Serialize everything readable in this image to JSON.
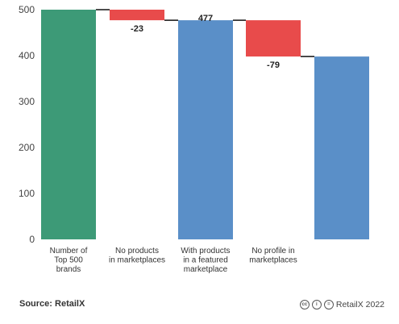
{
  "chart_data": {
    "type": "bar",
    "subtype": "waterfall",
    "categories": [
      [
        "Number of",
        "Top 500",
        "brands"
      ],
      [
        "No products",
        "in marketplaces"
      ],
      [
        "With products",
        "in a featured",
        "marketplace"
      ],
      [
        "No profile in",
        "marketplaces"
      ],
      []
    ],
    "steps": [
      {
        "kind": "total",
        "value": 500,
        "color": "#3d9a77",
        "label": ""
      },
      {
        "kind": "delta",
        "value": -23,
        "color": "#e84b4b",
        "label": "-23"
      },
      {
        "kind": "total",
        "value": 477,
        "color": "#5a8fc8",
        "label": "477"
      },
      {
        "kind": "delta",
        "value": -79,
        "color": "#e84b4b",
        "label": "-79"
      },
      {
        "kind": "total",
        "value": 398,
        "color": "#5a8fc8",
        "label": ""
      }
    ],
    "ylim": [
      0,
      500
    ],
    "yticks": [
      0,
      100,
      200,
      300,
      400,
      500
    ],
    "grid": false,
    "xlabel": "",
    "ylabel": ""
  },
  "footer": {
    "source": "Source: RetailX",
    "credit": "RetailX 2022",
    "license_icons": [
      "cc-icon",
      "by-icon",
      "nd-icon"
    ]
  }
}
